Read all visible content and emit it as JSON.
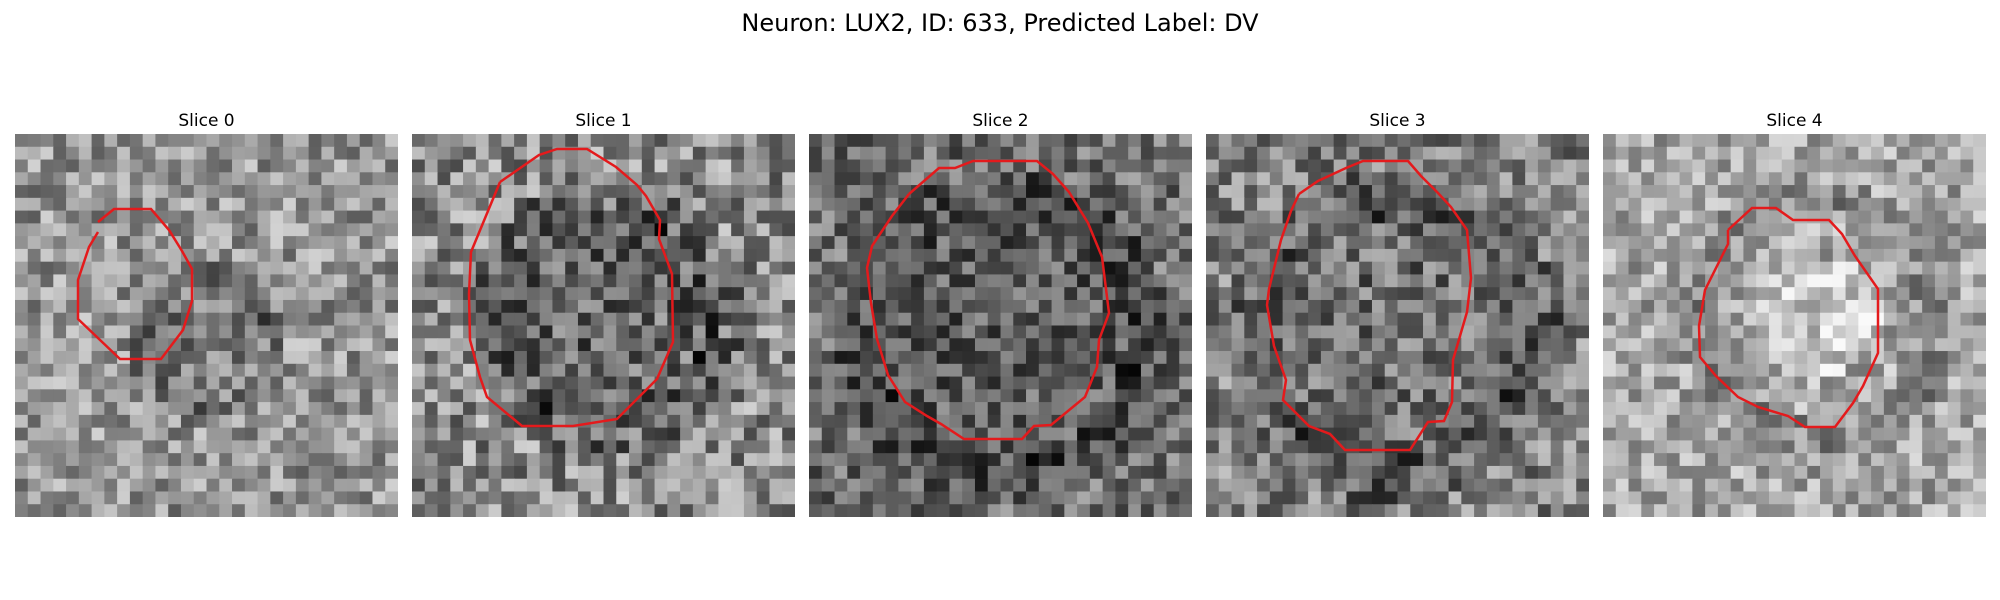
{
  "figure": {
    "title": "Neuron: LUX2, ID: 633, Predicted Label: DV"
  },
  "contour_color": "#e41a1c",
  "panels": [
    {
      "label": "Slice 0",
      "seed": 11,
      "base": 150,
      "contrast": 60,
      "ring_r": 0.34,
      "ring_cx": 0.5,
      "ring_cy": 0.55,
      "ring_dark": 0.45,
      "bright_top": false
    },
    {
      "label": "Slice 1",
      "seed": 23,
      "base": 140,
      "contrast": 70,
      "ring_r": 0.58,
      "ring_cx": 0.5,
      "ring_cy": 0.48,
      "ring_dark": 0.55,
      "bright_top": false
    },
    {
      "label": "Slice 2",
      "seed": 37,
      "base": 110,
      "contrast": 60,
      "ring_r": 0.7,
      "ring_cx": 0.51,
      "ring_cy": 0.54,
      "ring_dark": 0.3,
      "bright_top": false
    },
    {
      "label": "Slice 3",
      "seed": 49,
      "base": 130,
      "contrast": 65,
      "ring_r": 0.7,
      "ring_cx": 0.49,
      "ring_cy": 0.53,
      "ring_dark": 0.3,
      "bright_top": false
    },
    {
      "label": "Slice 4",
      "seed": 61,
      "base": 165,
      "contrast": 55,
      "ring_r": 0.58,
      "ring_cx": 0.56,
      "ring_cy": 0.48,
      "ring_dark": 0.2,
      "bright_top": true
    }
  ]
}
